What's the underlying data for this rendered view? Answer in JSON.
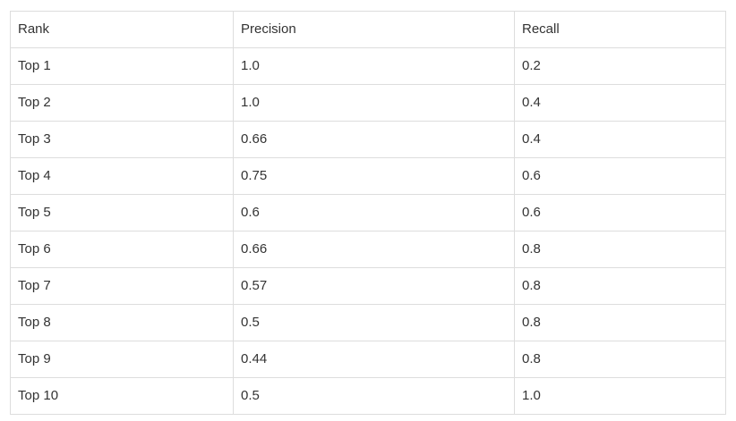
{
  "table": {
    "headers": [
      "Rank",
      "Precision",
      "Recall"
    ],
    "rows": [
      [
        "Top 1",
        "1.0",
        "0.2"
      ],
      [
        "Top 2",
        "1.0",
        "0.4"
      ],
      [
        "Top 3",
        "0.66",
        "0.4"
      ],
      [
        "Top 4",
        "0.75",
        "0.6"
      ],
      [
        "Top 5",
        "0.6",
        "0.6"
      ],
      [
        "Top 6",
        "0.66",
        "0.8"
      ],
      [
        "Top 7",
        "0.57",
        "0.8"
      ],
      [
        "Top 8",
        "0.5",
        "0.8"
      ],
      [
        "Top 9",
        "0.44",
        "0.8"
      ],
      [
        "Top 10",
        "0.5",
        "1.0"
      ]
    ]
  }
}
